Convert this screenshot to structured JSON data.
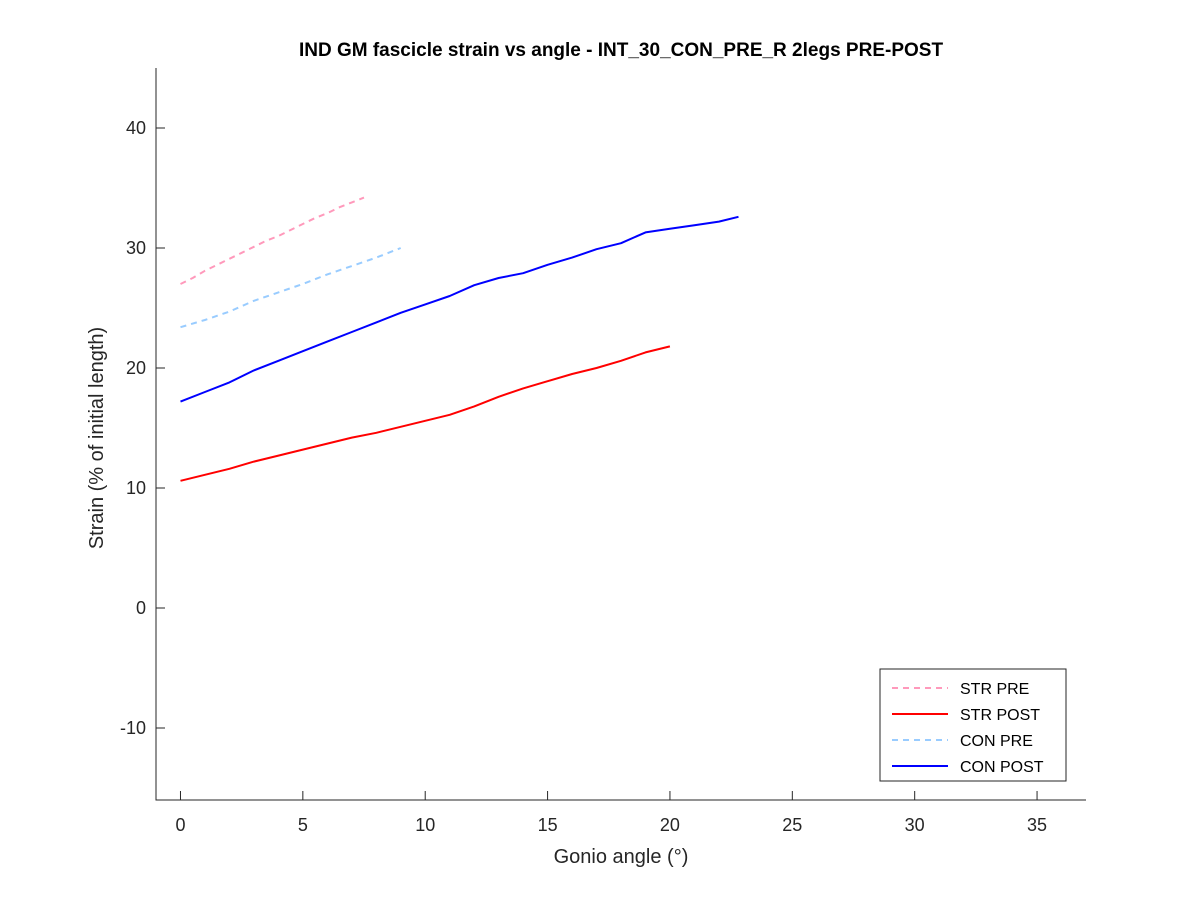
{
  "chart_data": {
    "type": "line",
    "title": "IND GM fascicle strain vs angle - INT_30_CON_PRE_R 2legs PRE-POST",
    "xlabel": "Gonio angle (°)",
    "ylabel": "Strain (% of initial length)",
    "xlim": [
      -1,
      37
    ],
    "ylim": [
      -16,
      45
    ],
    "xticks": [
      0,
      5,
      10,
      15,
      20,
      25,
      30,
      35
    ],
    "yticks": [
      -10,
      0,
      10,
      20,
      30,
      40
    ],
    "grid": false,
    "legend_position": "bottom-right",
    "series": [
      {
        "name": "STR PRE",
        "color": "#ff99bb",
        "dash": "dashed",
        "x": [
          0,
          0.5,
          1,
          1.5,
          2,
          2.5,
          3,
          3.5,
          4,
          4.5,
          5,
          5.5,
          6,
          6.5,
          7,
          7.5
        ],
        "y": [
          27.0,
          27.5,
          28.1,
          28.6,
          29.1,
          29.6,
          30.1,
          30.6,
          31.0,
          31.5,
          32.0,
          32.5,
          32.9,
          33.4,
          33.8,
          34.2
        ]
      },
      {
        "name": "STR POST",
        "color": "#ff0000",
        "dash": "solid",
        "x": [
          0,
          1,
          2,
          3,
          4,
          5,
          6,
          7,
          8,
          9,
          10,
          11,
          12,
          13,
          14,
          15,
          16,
          17,
          18,
          19,
          20
        ],
        "y": [
          10.6,
          11.1,
          11.6,
          12.2,
          12.7,
          13.2,
          13.7,
          14.2,
          14.6,
          15.1,
          15.6,
          16.1,
          16.8,
          17.6,
          18.3,
          18.9,
          19.5,
          20.0,
          20.6,
          21.3,
          21.8
        ]
      },
      {
        "name": "CON PRE",
        "color": "#99ccff",
        "dash": "dashed",
        "x": [
          0,
          1,
          2,
          3,
          4,
          5,
          6,
          7,
          8,
          9
        ],
        "y": [
          23.4,
          24.0,
          24.7,
          25.6,
          26.3,
          27.0,
          27.8,
          28.5,
          29.2,
          30.0
        ]
      },
      {
        "name": "CON POST",
        "color": "#0000ff",
        "dash": "solid",
        "x": [
          0,
          1,
          2,
          3,
          4,
          5,
          6,
          7,
          8,
          9,
          10,
          11,
          12,
          13,
          14,
          15,
          16,
          17,
          18,
          19,
          20,
          21,
          22,
          22.8
        ],
        "y": [
          17.2,
          18.0,
          18.8,
          19.8,
          20.6,
          21.4,
          22.2,
          23.0,
          23.8,
          24.6,
          25.3,
          26.0,
          26.9,
          27.5,
          27.9,
          28.6,
          29.2,
          29.9,
          30.4,
          31.3,
          31.6,
          31.9,
          32.2,
          32.6
        ]
      }
    ]
  }
}
